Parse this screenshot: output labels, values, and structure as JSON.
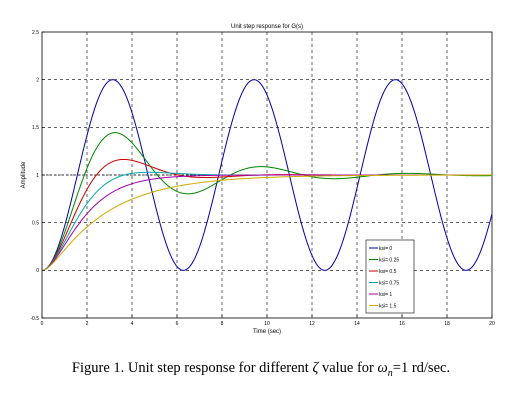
{
  "chart_data": {
    "type": "line",
    "title": "Unit step response for G(s)",
    "xlabel": "Time (sec)",
    "ylabel": "Amplitude",
    "xlim": [
      0,
      20
    ],
    "ylim": [
      -0.5,
      2.5
    ],
    "xticks": [
      "0",
      "2",
      "4",
      "6",
      "8",
      "10",
      "12",
      "14",
      "16",
      "18",
      "20"
    ],
    "yticks": [
      "-0.5",
      "0",
      "0.5",
      "1",
      "1.5",
      "2",
      "2.5"
    ],
    "grid": true,
    "legend_position": "bottom-right",
    "wn": 1,
    "series": [
      {
        "name": "ksi= 0",
        "zeta": 0,
        "color": "#0000aa"
      },
      {
        "name": "ksi= 0.25",
        "zeta": 0.25,
        "color": "#008800"
      },
      {
        "name": "ksi= 0.5",
        "zeta": 0.5,
        "color": "#cc0000"
      },
      {
        "name": "ksi= 0.75",
        "zeta": 0.75,
        "color": "#00aaaa"
      },
      {
        "name": "ksi= 1",
        "zeta": 1,
        "color": "#aa00aa"
      },
      {
        "name": "ksi= 1.5",
        "zeta": 1.5,
        "color": "#ccaa00"
      }
    ]
  },
  "caption": {
    "prefix": "Figure 1. Unit step response for different ",
    "zeta": "ζ",
    "middle": " value for ",
    "omega": "ω",
    "sub": "n",
    "suffix": "=1 rd/sec."
  }
}
